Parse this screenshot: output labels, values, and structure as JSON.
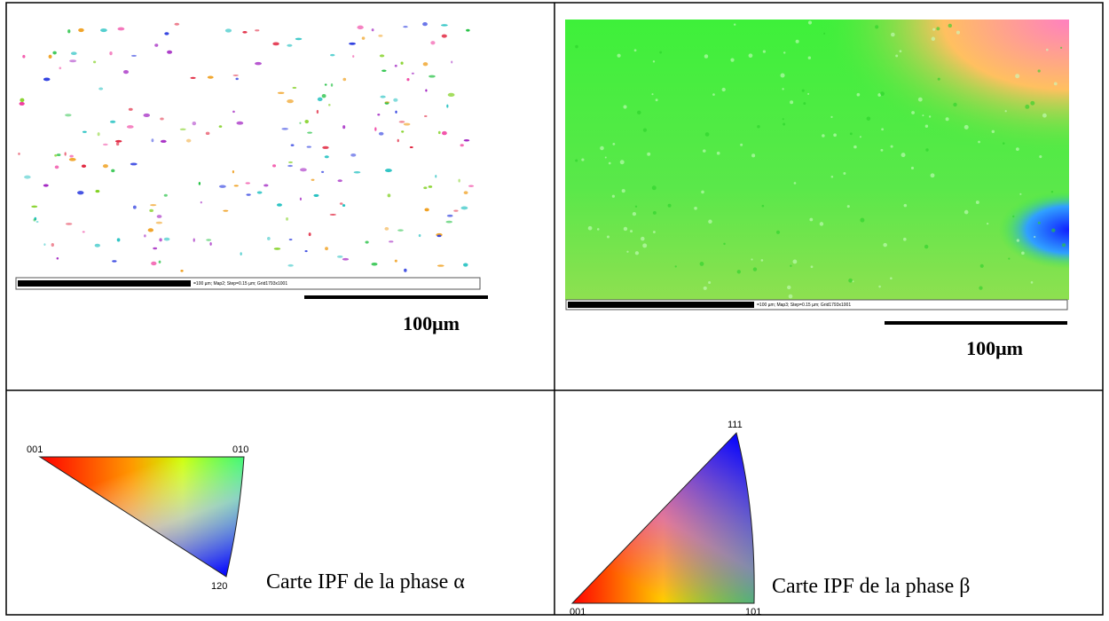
{
  "panels": [
    {
      "scale_caption": "=100 µm; Map2; Step=0.15 µm; Grid1793x1001",
      "scale_label": "100μm"
    },
    {
      "scale_caption": "=100 µm; Map3; Step=0.15 µm; Grid1793x1001",
      "scale_label": "100μm"
    }
  ],
  "legends": [
    {
      "labels": [
        "001",
        "010",
        "120"
      ],
      "caption": "Carte IPF de la phase α"
    },
    {
      "labels": [
        "111",
        "001",
        "101"
      ],
      "caption": "Carte IPF de la phase β"
    }
  ]
}
